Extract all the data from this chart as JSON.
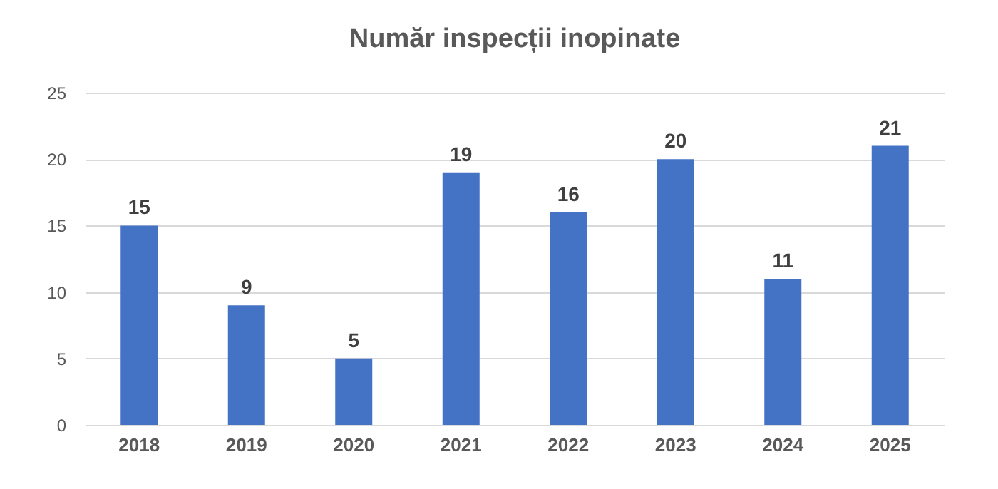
{
  "chart_data": {
    "type": "bar",
    "title": "Număr inspecții inopinate",
    "categories": [
      "2018",
      "2019",
      "2020",
      "2021",
      "2022",
      "2023",
      "2024",
      "2025"
    ],
    "values": [
      15,
      9,
      5,
      19,
      16,
      20,
      11,
      21
    ],
    "color": "#4472c4",
    "ylim": [
      0,
      25
    ],
    "yticks": [
      0,
      5,
      10,
      15,
      20,
      25
    ],
    "grid": "y",
    "data_labels": true
  }
}
